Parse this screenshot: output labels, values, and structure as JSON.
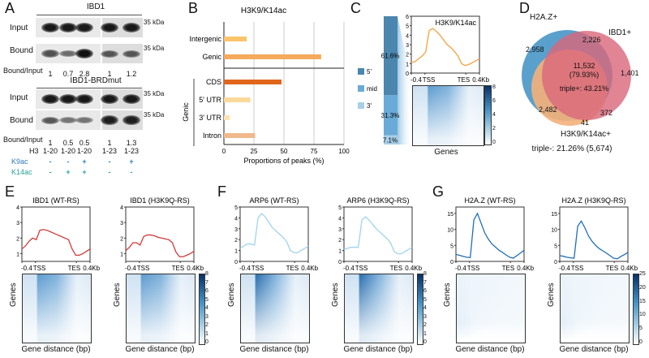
{
  "panels": {
    "a": "A",
    "b": "B",
    "c": "C",
    "d": "D",
    "e": "E",
    "f": "F",
    "g": "G"
  },
  "panel_a": {
    "group1_title": "IBD1",
    "group2_title": "IBD1-BRDmut",
    "row_input": "Input",
    "row_bound": "Bound",
    "marker": "35 kDa",
    "ratio_label": "Bound/Input",
    "ratios1": [
      "1",
      "0.7",
      "2.8",
      "1",
      "1.2"
    ],
    "ratios2": [
      "1",
      "0.5",
      "0.5",
      "1",
      "1.3"
    ],
    "h3_label": "H3",
    "h3": [
      "1-20",
      "1-20",
      "1-20",
      "1-23",
      "1-23"
    ],
    "k9_label": "K9ac",
    "k9": [
      "-",
      "-",
      "+",
      "-",
      "+"
    ],
    "k14_label": "K14ac",
    "k14": [
      "-",
      "+",
      "+",
      "-",
      "-"
    ],
    "band_intensity1_bound": [
      0.55,
      0.35,
      1.0,
      0.5,
      0.5
    ],
    "band_intensity2_bound": [
      0.5,
      0.3,
      0.3,
      0.9,
      0.9
    ]
  },
  "chart_data": [
    {
      "id": "B",
      "type": "bar",
      "title": "H3K9/K14ac",
      "categories": [
        "Intergenic",
        "Genic",
        "CDS",
        "5' UTR",
        "3' UTR",
        "Intron"
      ],
      "values": [
        19,
        81,
        48,
        22,
        5,
        26
      ],
      "colors": [
        "#f9c46b",
        "#f6a95a",
        "#e0661c",
        "#fbd99a",
        "#fde3b3",
        "#f0b98c"
      ],
      "group_label": "Genic",
      "xlabel": "Proportions of peaks (%)",
      "xlim": [
        0,
        100
      ],
      "xticks": [
        "0",
        "25",
        "50",
        "75",
        "100"
      ]
    },
    {
      "id": "C-bar",
      "type": "bar",
      "stacked": true,
      "categories": [
        "5'",
        "mid",
        "3'"
      ],
      "values": [
        61.6,
        31.3,
        7.1
      ],
      "labels": [
        "61.6%",
        "31.3%",
        "7.1%"
      ],
      "colors": [
        "#4a86ad",
        "#6aaad6",
        "#a9cfe8"
      ]
    },
    {
      "id": "C",
      "type": "line",
      "title": "H3K9/K14ac",
      "color": "#f7a040",
      "ylim": [
        0,
        6
      ],
      "yticks": [
        "0",
        "1",
        "2",
        "3",
        "4",
        "5",
        "6"
      ],
      "xticks": [
        "-0.4",
        "TSS",
        "TES",
        "0.4Kb"
      ],
      "y": [
        1.1,
        1.2,
        1.5,
        1.8,
        2.2,
        4.5,
        4.7,
        4.4,
        4.0,
        3.5,
        3.0,
        2.7,
        2.3,
        1.8,
        1.0,
        0.8,
        0.9,
        1.1,
        1.3,
        1.5
      ],
      "heatmap_ylabel": "Genes",
      "colorbar": [
        "0",
        "2",
        "4",
        "6",
        "8"
      ]
    },
    {
      "id": "E1",
      "type": "line",
      "title": "IBD1 (WT-RS)",
      "color": "#d23a3a",
      "ylim": [
        0.5,
        4
      ],
      "yticks": [
        "1",
        "2",
        "3",
        "4"
      ],
      "xticks": [
        "-0.4",
        "TSS",
        "TES",
        "0.4Kb"
      ],
      "y": [
        1.3,
        1.5,
        1.8,
        2.0,
        1.9,
        2.5,
        2.55,
        2.5,
        2.4,
        2.3,
        2.2,
        2.1,
        2.0,
        1.9,
        1.3,
        0.9,
        0.9,
        1.0,
        1.15,
        1.3
      ]
    },
    {
      "id": "E2",
      "type": "line",
      "title": "IBD1 (H3K9Q-RS)",
      "color": "#d23a3a",
      "ylim": [
        0.5,
        4
      ],
      "yticks": [
        "1",
        "2",
        "3",
        "4"
      ],
      "xticks": [
        "-0.4",
        "TSS",
        "TES",
        "0.4Kb"
      ],
      "y": [
        1.2,
        1.4,
        1.7,
        1.7,
        1.55,
        2.1,
        2.2,
        2.2,
        2.15,
        2.05,
        2.0,
        1.95,
        1.9,
        1.7,
        1.1,
        0.8,
        0.8,
        0.9,
        1.0,
        1.15
      ]
    },
    {
      "id": "F1",
      "type": "line",
      "title": "ARP6 (WT-RS)",
      "color": "#9fd4ea",
      "ylim": [
        0,
        5
      ],
      "yticks": [
        "0",
        "1",
        "2",
        "3",
        "4",
        "5"
      ],
      "xticks": [
        "-0.4",
        "TSS",
        "TES",
        "0.4Kb"
      ],
      "y": [
        1.2,
        1.4,
        1.6,
        1.6,
        1.5,
        4.0,
        4.4,
        4.1,
        3.6,
        3.1,
        2.8,
        2.5,
        2.2,
        1.8,
        1.0,
        0.8,
        0.8,
        1.0,
        1.2,
        1.4
      ]
    },
    {
      "id": "F2",
      "type": "line",
      "title": "ARP6 (H3K9Q-RS)",
      "color": "#9fd4ea",
      "ylim": [
        0,
        5
      ],
      "yticks": [
        "0",
        "1",
        "2",
        "3",
        "4",
        "5"
      ],
      "xticks": [
        "-0.4",
        "TSS",
        "TES",
        "0.4Kb"
      ],
      "y": [
        1.1,
        1.2,
        1.3,
        1.3,
        1.3,
        3.8,
        4.1,
        3.8,
        3.4,
        3.0,
        2.7,
        2.4,
        2.1,
        1.7,
        0.9,
        0.7,
        0.7,
        0.9,
        1.1,
        1.3
      ]
    },
    {
      "id": "G1",
      "type": "line",
      "title": "H2A.Z (WT-RS)",
      "color": "#1f6fb5",
      "ylim": [
        0,
        17
      ],
      "yticks": [
        "0",
        "5",
        "10",
        "15"
      ],
      "xticks": [
        "-0.4",
        "TSS",
        "TES",
        "0.4Kb"
      ],
      "y": [
        2.2,
        1.9,
        1.6,
        1.3,
        1.2,
        13,
        15,
        12,
        9,
        7,
        5.5,
        4.5,
        3.5,
        2.8,
        2,
        1.3,
        1.0,
        1.8,
        2.6,
        3.5
      ]
    },
    {
      "id": "G2",
      "type": "line",
      "title": "H2A.Z (H3K9Q-RS)",
      "color": "#1f6fb5",
      "ylim": [
        0,
        17
      ],
      "yticks": [
        "0",
        "5",
        "10",
        "15"
      ],
      "xticks": [
        "-0.4",
        "TSS",
        "TES",
        "0.4Kb"
      ],
      "y": [
        1.8,
        1.6,
        1.3,
        1.1,
        1.0,
        11,
        12.6,
        10.5,
        8,
        6.3,
        5,
        4,
        3.3,
        2.6,
        1.8,
        1.0,
        0.8,
        1.5,
        2.1,
        2.8
      ]
    }
  ],
  "heatmaps": {
    "ylabel": "Genes",
    "xlabel": "Gene distance (bp)",
    "colorbar_ef": [
      "0",
      "1",
      "2",
      "3",
      "4",
      "5",
      "6",
      "7",
      "8"
    ],
    "colorbar_g": [
      "0",
      "5",
      "10",
      "15",
      "20",
      "25"
    ]
  },
  "venn": {
    "h2az": "H2A.Z+",
    "ibd1": "IBD1+",
    "k9k14": "H3K9/K14ac+",
    "h2az_only": "2,958",
    "h2az_ibd1": "2,226",
    "center": "11,532",
    "center_pct": "(79.93%)",
    "triple_pos": "triple+: 43.21%",
    "ibd1_only": "1,401",
    "h2az_k9": "2,482",
    "ibd1_k9": "372",
    "k9_only": "41",
    "triple_neg": "triple-: 21.26% (5,674)"
  }
}
